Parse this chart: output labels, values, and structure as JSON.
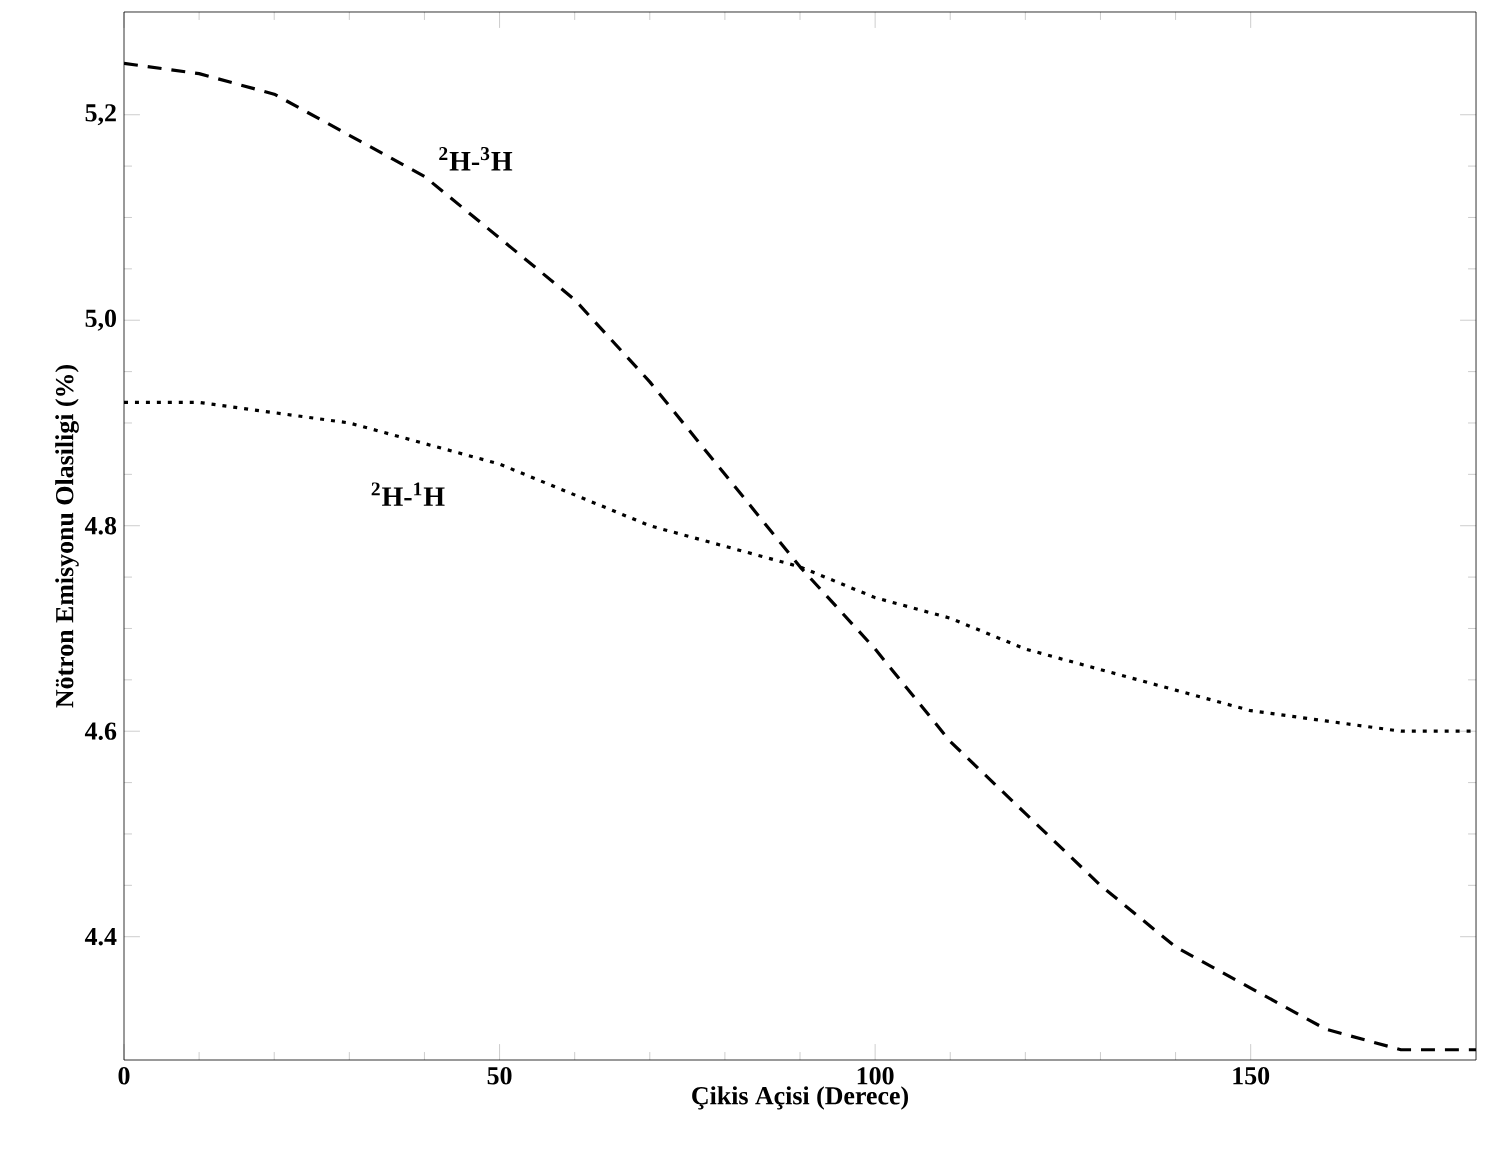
{
  "chart_data": {
    "type": "line",
    "xlabel": "Çikis Açisi (Derece)",
    "ylabel": "Nötron Emisyonu Olasiligi (%)",
    "x": [
      0,
      10,
      20,
      30,
      40,
      50,
      60,
      70,
      80,
      90,
      100,
      110,
      120,
      130,
      140,
      150,
      160,
      170,
      180
    ],
    "series": [
      {
        "name": "$^{2}$H-$^{3}$H",
        "color": "#000000",
        "line_style": "dashed",
        "values": [
          5.25,
          5.24,
          5.22,
          5.18,
          5.14,
          5.08,
          5.02,
          4.94,
          4.85,
          4.76,
          4.68,
          4.59,
          4.52,
          4.45,
          4.39,
          4.35,
          4.31,
          4.29,
          4.29
        ]
      },
      {
        "name": "$^{2}$H-$^{1}$H",
        "color": "#000000",
        "line_style": "dotted",
        "values": [
          4.92,
          4.92,
          4.91,
          4.9,
          4.88,
          4.86,
          4.83,
          4.8,
          4.78,
          4.76,
          4.73,
          4.71,
          4.68,
          4.66,
          4.64,
          4.62,
          4.61,
          4.6,
          4.6
        ]
      }
    ],
    "xlim": [
      0,
      180
    ],
    "ylim": [
      4.28,
      5.3
    ],
    "xticks": [
      0,
      50,
      100,
      150
    ],
    "yticks": [
      {
        "value": 4.4,
        "label": "4.4"
      },
      {
        "value": 4.6,
        "label": "4.6"
      },
      {
        "value": 4.8,
        "label": "4.8"
      },
      {
        "value": 5.0,
        "label": "5,0"
      },
      {
        "value": 5.2,
        "label": "5,2"
      }
    ],
    "grid": false,
    "legend": false,
    "marker": "none"
  }
}
